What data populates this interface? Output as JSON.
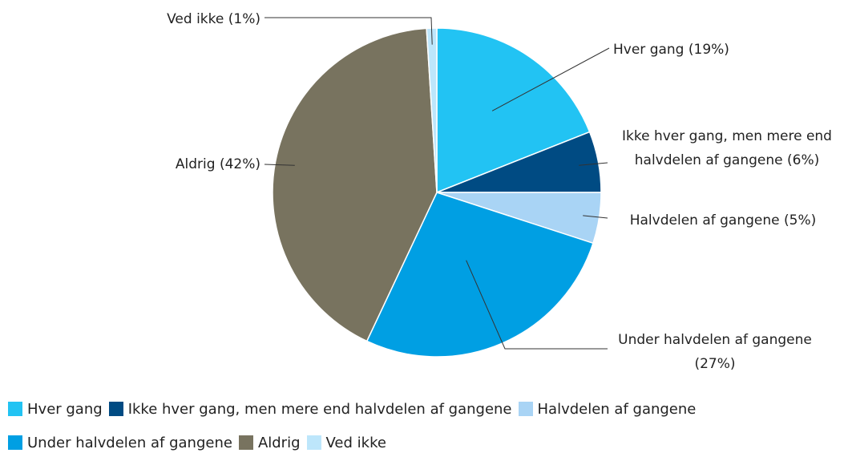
{
  "chart_data": {
    "type": "pie",
    "categories": [
      "Hver gang",
      "Ikke hver gang, men mere end halvdelen af gangene",
      "Halvdelen af gangene",
      "Under halvdelen af gangene",
      "Aldrig",
      "Ved ikke"
    ],
    "values": [
      19,
      6,
      5,
      27,
      42,
      1
    ],
    "value_labels": [
      "Hver gang (19%)",
      "Ikke hver gang, men mere end halvdelen af gangene (6%)",
      "Halvdelen af gangene (5%)",
      "Under halvdelen af gangene (27%)",
      "Aldrig (42%)",
      "Ved ikke (1%)"
    ],
    "colors": [
      "#22c3f3",
      "#004b83",
      "#a9d4f5",
      "#009fe3",
      "#78735f",
      "#bde6fb"
    ],
    "legend": "bottom"
  }
}
